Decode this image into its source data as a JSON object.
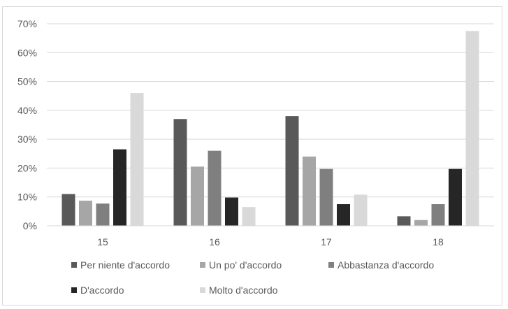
{
  "chart_data": {
    "type": "bar",
    "categories": [
      "15",
      "16",
      "17",
      "18"
    ],
    "series": [
      {
        "name": "Per niente d'accordo",
        "color": "#595959",
        "values": [
          11,
          37,
          38,
          3.3
        ]
      },
      {
        "name": "Un po' d'accordo",
        "color": "#a6a6a6",
        "values": [
          8.7,
          20.5,
          24,
          2
        ]
      },
      {
        "name": "Abbastanza d'accordo",
        "color": "#7f7f7f",
        "values": [
          7.7,
          26,
          19.7,
          7.5
        ]
      },
      {
        "name": "D'accordo",
        "color": "#262626",
        "values": [
          26.5,
          9.8,
          7.5,
          19.7
        ]
      },
      {
        "name": "Molto d'accordo",
        "color": "#d9d9d9",
        "values": [
          46,
          6.5,
          10.8,
          67.5
        ]
      }
    ],
    "yticks": [
      "0%",
      "10%",
      "20%",
      "30%",
      "40%",
      "50%",
      "60%",
      "70%"
    ],
    "ylim": [
      0,
      70
    ],
    "title": "",
    "xlabel": "",
    "ylabel": "",
    "grid": true,
    "legend": "bottom"
  }
}
